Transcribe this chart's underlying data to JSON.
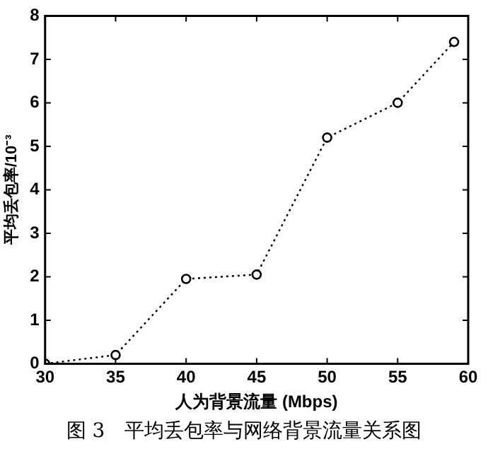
{
  "chart_data": {
    "type": "line",
    "xlabel": "人为背景流量 (Mbps)",
    "ylabel": "平均丢包率/10⁻³",
    "annotations": [
      "图 3　平均丢包率与网络背景流量关系图"
    ],
    "x": [
      30,
      35,
      40,
      45,
      50,
      55,
      59
    ],
    "series": [
      {
        "color": "#000000",
        "values": [
          0,
          0.2,
          1.95,
          2.05,
          5.2,
          6.0,
          7.4
        ]
      }
    ],
    "xlim": [
      30,
      60
    ],
    "xticks": [
      30,
      35,
      40,
      45,
      50,
      55,
      60
    ],
    "ylim": [
      0,
      8
    ],
    "yticks": [
      0,
      1,
      2,
      3,
      4,
      5,
      6,
      7,
      8
    ],
    "grid": false,
    "legend": false,
    "marker": "circle",
    "line_style": "dotted"
  }
}
